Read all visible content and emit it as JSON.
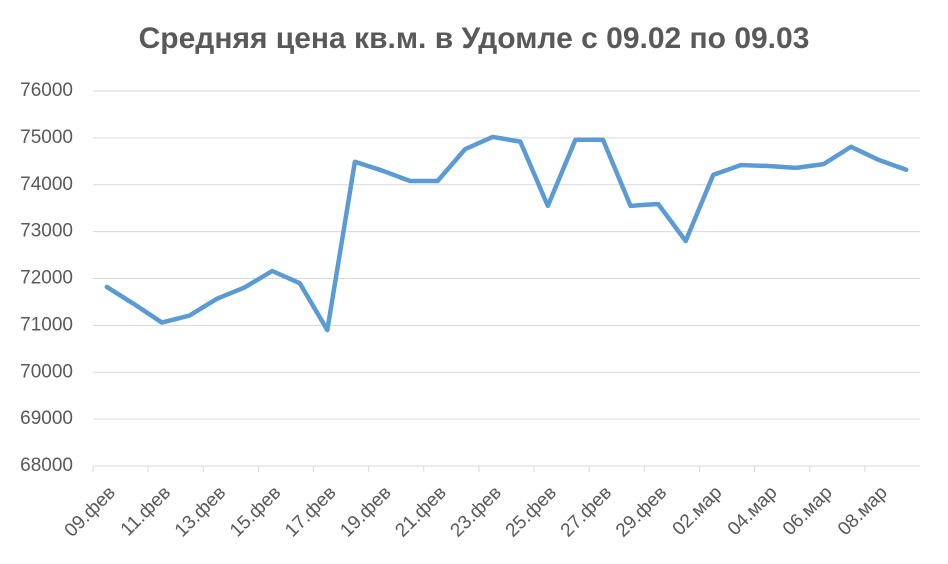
{
  "chart_data": {
    "type": "line",
    "title": "Средняя цена кв.м. в Удомле с 09.02 по 09.03",
    "categories": [
      "09.фев",
      null,
      "11.фев",
      null,
      "13.фев",
      null,
      "15.фев",
      null,
      "17.фев",
      null,
      "19.фев",
      null,
      "21.фев",
      null,
      "23.фев",
      null,
      "25.фев",
      null,
      "27.фев",
      null,
      "29.фев",
      null,
      "02.мар",
      null,
      "04.мар",
      null,
      "06.мар",
      null,
      "08.мар",
      null
    ],
    "series": [
      {
        "name": "Средняя цена",
        "color": "#5b9bd5",
        "values": [
          71820,
          71450,
          71060,
          71210,
          71570,
          71810,
          72160,
          71900,
          70900,
          74490,
          74300,
          74080,
          74080,
          74760,
          75020,
          74920,
          73550,
          74960,
          74960,
          73550,
          73590,
          72800,
          74210,
          74420,
          74400,
          74360,
          74440,
          74810,
          74530,
          74320
        ]
      }
    ],
    "ylim": [
      68000,
      76000
    ],
    "yticks": [
      68000,
      69000,
      70000,
      71000,
      72000,
      73000,
      74000,
      75000,
      76000
    ],
    "grid": true
  }
}
